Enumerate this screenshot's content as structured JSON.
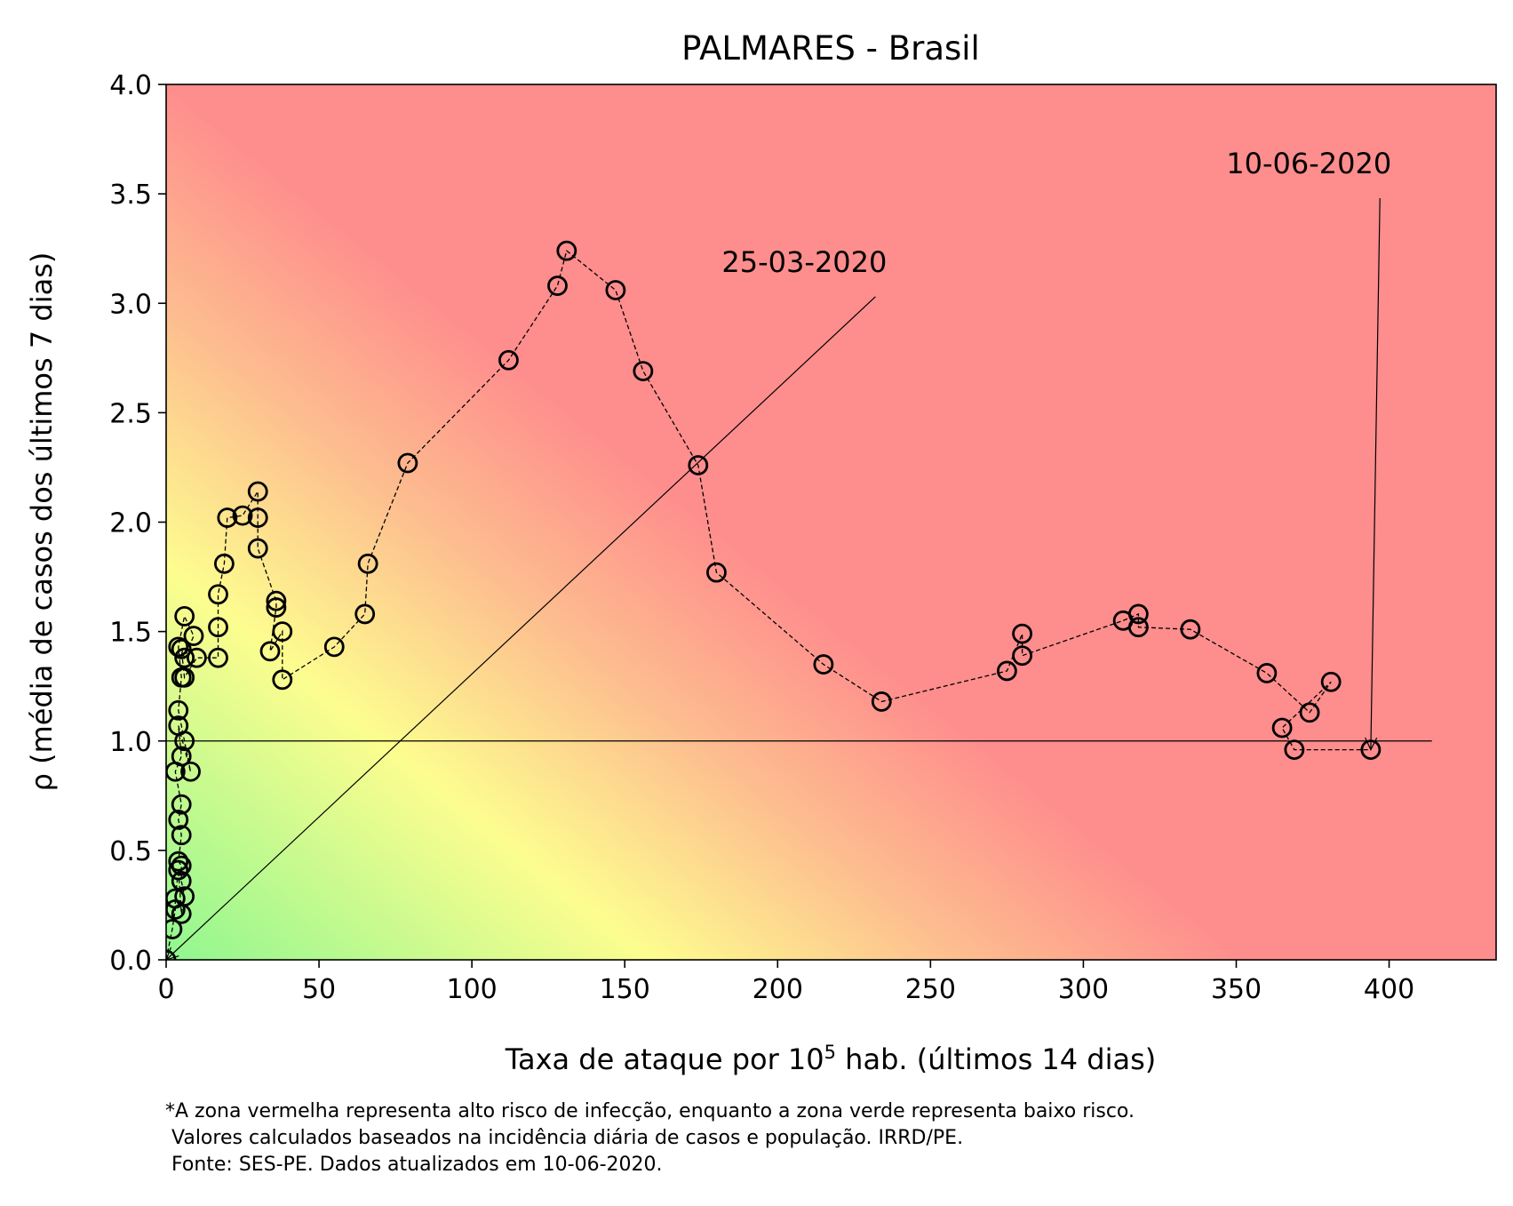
{
  "chart_data": {
    "type": "scatter",
    "title": "PALMARES - Brasil",
    "xlabel": {
      "base": "Taxa de ataque por 10",
      "sup": "5",
      "rest": " hab. (últimos 14 dias)"
    },
    "ylabel": "ρ (média de casos dos últimos 7 dias)",
    "xlim": [
      0,
      435
    ],
    "ylim": [
      0,
      4
    ],
    "xticks": [
      0,
      50,
      100,
      150,
      200,
      250,
      300,
      350,
      400
    ],
    "yticks": [
      0.0,
      0.5,
      1.0,
      1.5,
      2.0,
      2.5,
      3.0,
      3.5,
      4.0
    ],
    "ytick_labels": [
      "0.0",
      "0.5",
      "1.0",
      "1.5",
      "2.0",
      "2.5",
      "3.0",
      "3.5",
      "4.0"
    ],
    "grid": false,
    "background": "risk gradient: green (low) - yellow - red (high)",
    "colors": {
      "green": "#8ff78f",
      "yellow": "#fdfd8f",
      "orange": "#fdbf8f",
      "red": "#fe8d8d",
      "marker": "#000000"
    },
    "reference_line": {
      "y": 1.0,
      "x_from": 0,
      "x_to": 414
    },
    "series": [
      {
        "x": [
          0,
          2,
          3,
          3,
          4,
          5,
          6,
          5,
          5,
          4,
          5,
          4,
          5,
          3,
          5,
          4,
          8,
          6,
          4,
          5,
          4,
          6,
          9,
          6,
          5,
          6,
          10,
          17,
          17,
          17,
          19,
          20,
          25,
          30,
          30,
          30,
          36,
          36,
          34,
          38,
          38,
          55,
          65,
          66,
          79,
          112,
          128,
          131,
          147,
          156,
          174,
          180,
          215,
          234,
          275,
          280,
          280,
          313,
          318,
          318,
          335,
          360,
          374,
          381,
          365,
          369,
          394
        ],
        "y": [
          0.0,
          0.14,
          0.23,
          0.28,
          0.41,
          0.21,
          0.29,
          0.36,
          0.43,
          0.45,
          0.57,
          0.64,
          0.71,
          0.86,
          0.93,
          1.07,
          0.86,
          1.0,
          1.14,
          1.29,
          1.43,
          1.57,
          1.48,
          1.38,
          1.42,
          1.29,
          1.38,
          1.38,
          1.52,
          1.67,
          1.81,
          2.02,
          2.03,
          2.14,
          2.02,
          1.88,
          1.64,
          1.61,
          1.41,
          1.5,
          1.28,
          1.43,
          1.58,
          1.81,
          2.27,
          2.74,
          3.08,
          3.24,
          3.06,
          2.69,
          2.26,
          1.77,
          1.35,
          1.18,
          1.32,
          1.49,
          1.39,
          1.55,
          1.58,
          1.52,
          1.51,
          1.31,
          1.13,
          1.27,
          1.06,
          0.96,
          0.96
        ]
      }
    ],
    "annotations": [
      {
        "text": "25-03-2020",
        "text_x": 232,
        "text_y": 3.03,
        "point_x": 0,
        "point_y": 0
      },
      {
        "text": "10-06-2020",
        "text_x": 397,
        "text_y": 3.48,
        "point_x": 394,
        "point_y": 0.96
      }
    ]
  },
  "footnote": [
    "*A zona vermelha representa alto risco de infecção, enquanto a zona verde representa baixo risco.",
    " Valores calculados baseados na incidência diária de casos e população. IRRD/PE.",
    " Fonte: SES-PE. Dados atualizados em 10-06-2020."
  ]
}
